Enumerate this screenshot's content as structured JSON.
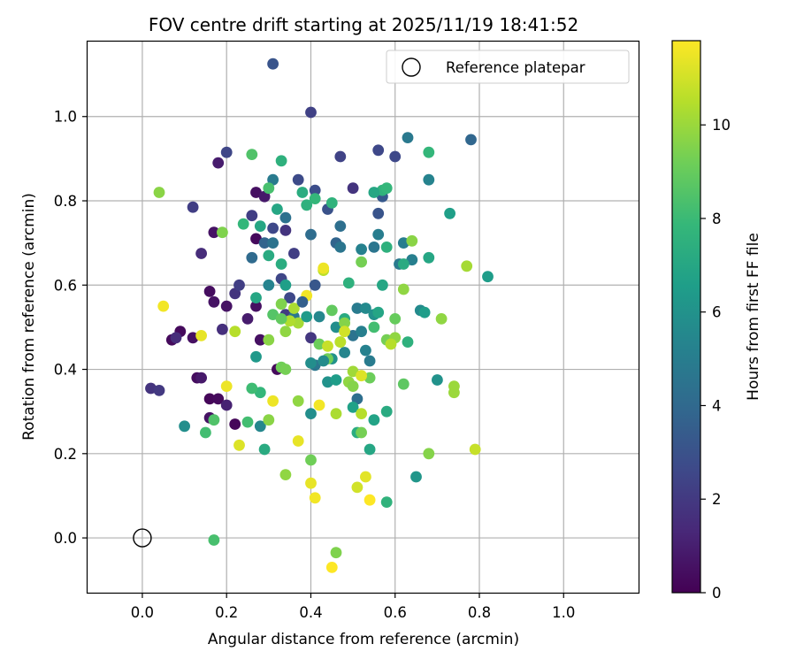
{
  "chart_data": {
    "type": "scatter",
    "title": "FOV centre drift starting at 2025/11/19 18:41:52",
    "xlabel": "Angular distance from reference (arcmin)",
    "ylabel": "Rotation from reference (arcmin)",
    "xlim": [
      -0.13,
      1.18
    ],
    "ylim": [
      -0.13,
      1.18
    ],
    "xticks": [
      0.0,
      0.2,
      0.4,
      0.6,
      0.8,
      1.0
    ],
    "yticks": [
      0.0,
      0.2,
      0.4,
      0.6,
      0.8,
      1.0
    ],
    "xtick_labels": [
      "0.0",
      "0.2",
      "0.4",
      "0.6",
      "0.8",
      "1.0"
    ],
    "ytick_labels": [
      "0.0",
      "0.2",
      "0.4",
      "0.6",
      "0.8",
      "1.0"
    ],
    "grid": true,
    "legend": {
      "position": "top-right",
      "entries": [
        "Reference platepar"
      ]
    },
    "reference_point": {
      "x": 0.0,
      "y": 0.0,
      "label": "Reference platepar"
    },
    "colorbar": {
      "label": "Hours from first FF file",
      "range": [
        0,
        11.8
      ],
      "ticks": [
        0,
        2,
        4,
        6,
        8,
        10
      ],
      "tick_labels": [
        "0",
        "2",
        "4",
        "6",
        "8",
        "10"
      ],
      "colormap": "viridis",
      "stops": [
        "#440154",
        "#482878",
        "#3e4989",
        "#31688e",
        "#26828e",
        "#1f9e89",
        "#35b779",
        "#6ece58",
        "#b5de2b",
        "#fde725"
      ]
    },
    "series": [
      {
        "name": "FOV centre drift",
        "points": [
          [
            0.07,
            0.47,
            0.3
          ],
          [
            0.09,
            0.49,
            0.3
          ],
          [
            0.12,
            0.475,
            0.5
          ],
          [
            0.16,
            0.585,
            0.4
          ],
          [
            0.17,
            0.56,
            0.6
          ],
          [
            0.2,
            0.55,
            0.6
          ],
          [
            0.27,
            0.55,
            0.5
          ],
          [
            0.17,
            0.725,
            0.6
          ],
          [
            0.18,
            0.89,
            0.9
          ],
          [
            0.27,
            0.82,
            0.5
          ],
          [
            0.29,
            0.81,
            0.8
          ],
          [
            0.27,
            0.71,
            0.3
          ],
          [
            0.13,
            0.38,
            0.4
          ],
          [
            0.14,
            0.38,
            0.8
          ],
          [
            0.16,
            0.33,
            0.2
          ],
          [
            0.18,
            0.33,
            0.3
          ],
          [
            0.16,
            0.285,
            0.6
          ],
          [
            0.22,
            0.27,
            0.2
          ],
          [
            0.2,
            0.315,
            1.1
          ],
          [
            0.28,
            0.47,
            0.5
          ],
          [
            0.32,
            0.4,
            0.3
          ],
          [
            0.25,
            0.52,
            0.9
          ],
          [
            0.02,
            0.355,
            1.8
          ],
          [
            0.04,
            0.35,
            2.0
          ],
          [
            0.08,
            0.475,
            1.5
          ],
          [
            0.12,
            0.785,
            2.2
          ],
          [
            0.14,
            0.675,
            1.5
          ],
          [
            0.2,
            0.915,
            2.5
          ],
          [
            0.19,
            0.495,
            1.6
          ],
          [
            0.22,
            0.58,
            1.8
          ],
          [
            0.23,
            0.6,
            2.2
          ],
          [
            0.26,
            0.765,
            2.2
          ],
          [
            0.31,
            1.125,
            3.1
          ],
          [
            0.4,
            1.01,
            2.3
          ],
          [
            0.37,
            0.85,
            2.7
          ],
          [
            0.41,
            0.825,
            2.8
          ],
          [
            0.47,
            0.905,
            2.4
          ],
          [
            0.56,
            0.92,
            2.6
          ],
          [
            0.6,
            0.905,
            2.6
          ],
          [
            0.5,
            0.83,
            1.8
          ],
          [
            0.31,
            0.735,
            2.6
          ],
          [
            0.34,
            0.73,
            1.8
          ],
          [
            0.36,
            0.675,
            2.2
          ],
          [
            0.33,
            0.615,
            2.5
          ],
          [
            0.35,
            0.57,
            2.6
          ],
          [
            0.4,
            0.475,
            1.9
          ],
          [
            0.34,
            0.53,
            2.1
          ],
          [
            0.41,
            0.6,
            3.2
          ],
          [
            0.44,
            0.78,
            3.0
          ],
          [
            0.56,
            0.77,
            3.1
          ],
          [
            0.57,
            0.81,
            3.3
          ],
          [
            0.78,
            0.945,
            3.9
          ],
          [
            0.63,
            0.95,
            4.8
          ],
          [
            0.68,
            0.85,
            5.3
          ],
          [
            0.29,
            0.7,
            3.8
          ],
          [
            0.31,
            0.7,
            4.5
          ],
          [
            0.34,
            0.76,
            4.4
          ],
          [
            0.4,
            0.72,
            4.2
          ],
          [
            0.46,
            0.7,
            3.8
          ],
          [
            0.47,
            0.74,
            4.3
          ],
          [
            0.47,
            0.69,
            4.6
          ],
          [
            0.52,
            0.685,
            5.2
          ],
          [
            0.55,
            0.69,
            4.6
          ],
          [
            0.56,
            0.72,
            5.0
          ],
          [
            0.62,
            0.7,
            5.0
          ],
          [
            0.64,
            0.66,
            5.1
          ],
          [
            0.61,
            0.65,
            4.8
          ],
          [
            0.66,
            0.54,
            5.6
          ],
          [
            0.7,
            0.375,
            6.0
          ],
          [
            0.65,
            0.145,
            6.2
          ],
          [
            0.82,
            0.62,
            6.5
          ],
          [
            0.73,
            0.77,
            6.6
          ],
          [
            0.31,
            0.85,
            4.9
          ],
          [
            0.3,
            0.6,
            5.3
          ],
          [
            0.36,
            0.525,
            4.7
          ],
          [
            0.42,
            0.525,
            5.5
          ],
          [
            0.46,
            0.5,
            5.8
          ],
          [
            0.5,
            0.48,
            4.5
          ],
          [
            0.52,
            0.49,
            5.1
          ],
          [
            0.53,
            0.445,
            5.2
          ],
          [
            0.54,
            0.42,
            4.9
          ],
          [
            0.51,
            0.33,
            4.3
          ],
          [
            0.48,
            0.44,
            5.4
          ],
          [
            0.45,
            0.425,
            6.0
          ],
          [
            0.41,
            0.41,
            4.7
          ],
          [
            0.4,
            0.415,
            5.8
          ],
          [
            0.4,
            0.295,
            5.8
          ],
          [
            0.44,
            0.37,
            6.0
          ],
          [
            0.51,
            0.545,
            4.9
          ],
          [
            0.53,
            0.545,
            5.6
          ],
          [
            0.55,
            0.53,
            6.0
          ],
          [
            0.28,
            0.265,
            5.5
          ],
          [
            0.1,
            0.265,
            5.8
          ],
          [
            0.27,
            0.43,
            6.3
          ],
          [
            0.54,
            0.21,
            7.0
          ],
          [
            0.55,
            0.28,
            6.8
          ],
          [
            0.29,
            0.21,
            7.2
          ],
          [
            0.3,
            0.67,
            7.2
          ],
          [
            0.32,
            0.78,
            7.0
          ],
          [
            0.33,
            0.895,
            7.5
          ],
          [
            0.28,
            0.74,
            7.0
          ],
          [
            0.27,
            0.57,
            7.0
          ],
          [
            0.33,
            0.65,
            7.3
          ],
          [
            0.34,
            0.6,
            6.6
          ],
          [
            0.38,
            0.82,
            7.3
          ],
          [
            0.39,
            0.79,
            7.5
          ],
          [
            0.41,
            0.805,
            7.8
          ],
          [
            0.45,
            0.795,
            7.6
          ],
          [
            0.57,
            0.825,
            7.6
          ],
          [
            0.58,
            0.83,
            7.8
          ],
          [
            0.55,
            0.82,
            7.0
          ],
          [
            0.57,
            0.6,
            7.0
          ],
          [
            0.58,
            0.69,
            7.5
          ],
          [
            0.62,
            0.65,
            7.2
          ],
          [
            0.68,
            0.665,
            7.0
          ],
          [
            0.68,
            0.915,
            7.8
          ],
          [
            0.67,
            0.535,
            6.5
          ],
          [
            0.63,
            0.465,
            7.5
          ],
          [
            0.58,
            0.3,
            7.2
          ],
          [
            0.58,
            0.085,
            7.6
          ],
          [
            0.46,
            0.375,
            6.5
          ],
          [
            0.5,
            0.31,
            6.7
          ],
          [
            0.51,
            0.25,
            7.3
          ],
          [
            0.48,
            0.52,
            7.2
          ],
          [
            0.49,
            0.605,
            7.5
          ],
          [
            0.26,
            0.665,
            4.1
          ],
          [
            0.3,
            0.83,
            8.3
          ],
          [
            0.26,
            0.91,
            8.5
          ],
          [
            0.24,
            0.745,
            7.8
          ],
          [
            0.28,
            0.345,
            7.8
          ],
          [
            0.26,
            0.355,
            8.1
          ],
          [
            0.25,
            0.275,
            8.2
          ],
          [
            0.17,
            0.28,
            8.5
          ],
          [
            0.15,
            0.25,
            8.2
          ],
          [
            0.17,
            -0.005,
            8.3
          ],
          [
            0.19,
            0.725,
            9.5
          ],
          [
            0.04,
            0.82,
            9.7
          ],
          [
            0.3,
            0.47,
            9.7
          ],
          [
            0.33,
            0.555,
            9.5
          ],
          [
            0.34,
            0.49,
            9.8
          ],
          [
            0.33,
            0.405,
            9.2
          ],
          [
            0.34,
            0.4,
            9.3
          ],
          [
            0.37,
            0.325,
            9.8
          ],
          [
            0.34,
            0.15,
            9.8
          ],
          [
            0.4,
            0.185,
            9.2
          ],
          [
            0.42,
            0.46,
            9.1
          ],
          [
            0.44,
            0.425,
            9.2
          ],
          [
            0.47,
            0.465,
            9.5
          ],
          [
            0.49,
            0.37,
            9.8
          ],
          [
            0.48,
            0.51,
            9.6
          ],
          [
            0.52,
            0.655,
            9.3
          ],
          [
            0.5,
            0.395,
            10.1
          ],
          [
            0.5,
            0.36,
            9.6
          ],
          [
            0.54,
            0.38,
            9.1
          ],
          [
            0.52,
            0.25,
            9.3
          ],
          [
            0.58,
            0.47,
            9.3
          ],
          [
            0.6,
            0.475,
            9.8
          ],
          [
            0.62,
            0.59,
            9.8
          ],
          [
            0.64,
            0.705,
            9.7
          ],
          [
            0.62,
            0.365,
            8.8
          ],
          [
            0.68,
            0.2,
            9.6
          ],
          [
            0.71,
            0.52,
            9.8
          ],
          [
            0.74,
            0.345,
            10.0
          ],
          [
            0.74,
            0.36,
            10.0
          ],
          [
            0.77,
            0.645,
            10.2
          ],
          [
            0.79,
            0.21,
            10.8
          ],
          [
            0.46,
            -0.035,
            9.5
          ],
          [
            0.3,
            0.28,
            9.7
          ],
          [
            0.36,
            0.545,
            10.3
          ],
          [
            0.37,
            0.51,
            10.2
          ],
          [
            0.35,
            0.515,
            10.4
          ],
          [
            0.43,
            0.635,
            10.6
          ],
          [
            0.44,
            0.455,
            10.8
          ],
          [
            0.47,
            0.465,
            10.6
          ],
          [
            0.46,
            0.295,
            10.3
          ],
          [
            0.48,
            0.49,
            11.0
          ],
          [
            0.52,
            0.295,
            10.5
          ],
          [
            0.52,
            0.385,
            11.2
          ],
          [
            0.53,
            0.145,
            11.3
          ],
          [
            0.51,
            0.12,
            11.0
          ],
          [
            0.31,
            0.325,
            11.5
          ],
          [
            0.23,
            0.22,
            11.2
          ],
          [
            0.2,
            0.36,
            11.5
          ],
          [
            0.22,
            0.49,
            10.5
          ],
          [
            0.14,
            0.48,
            11.4
          ],
          [
            0.05,
            0.55,
            11.6
          ],
          [
            0.37,
            0.23,
            11.4
          ],
          [
            0.42,
            0.315,
            11.6
          ],
          [
            0.4,
            0.13,
            11.4
          ],
          [
            0.41,
            0.095,
            11.6
          ],
          [
            0.45,
            -0.07,
            11.8
          ],
          [
            0.54,
            0.09,
            11.8
          ],
          [
            0.39,
            0.575,
            11.6
          ],
          [
            0.43,
            0.64,
            11.5
          ],
          [
            0.59,
            0.46,
            10.5
          ],
          [
            0.6,
            0.52,
            9.0
          ],
          [
            0.55,
            0.5,
            8.2
          ],
          [
            0.56,
            0.535,
            6.9
          ],
          [
            0.45,
            0.54,
            8.9
          ],
          [
            0.39,
            0.525,
            6.4
          ],
          [
            0.31,
            0.53,
            8.6
          ],
          [
            0.33,
            0.52,
            8.9
          ],
          [
            0.43,
            0.42,
            5.7
          ],
          [
            0.38,
            0.56,
            3.6
          ]
        ]
      }
    ]
  }
}
